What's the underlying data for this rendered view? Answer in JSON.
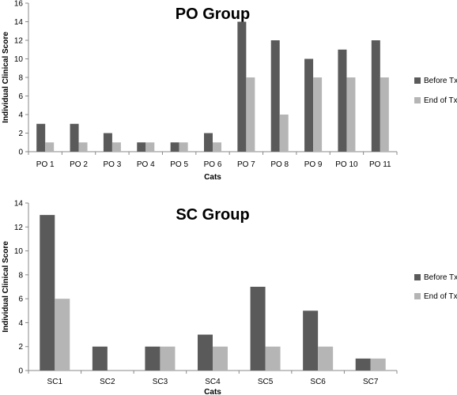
{
  "colors": {
    "before": "#5a5a5a",
    "end": "#b5b5b5"
  },
  "chart_data": [
    {
      "id": "po",
      "type": "bar",
      "title": "PO Group",
      "xlabel": "Cats",
      "ylabel": "Individual Clinical Score",
      "ylim": [
        0,
        16
      ],
      "yticks": [
        0,
        2,
        4,
        6,
        8,
        10,
        12,
        14,
        16
      ],
      "grid": false,
      "legend_position": "right",
      "categories": [
        "PO 1",
        "PO 2",
        "PO 3",
        "PO 4",
        "PO 5",
        "PO 6",
        "PO 7",
        "PO 8",
        "PO 9",
        "PO 10",
        "PO 11"
      ],
      "series": [
        {
          "name": "Before Tx",
          "values": [
            3,
            3,
            2,
            1,
            1,
            2,
            14,
            12,
            10,
            11,
            12
          ]
        },
        {
          "name": "End of Tx",
          "values": [
            1,
            1,
            1,
            1,
            1,
            1,
            8,
            4,
            8,
            8,
            8
          ]
        }
      ]
    },
    {
      "id": "sc",
      "type": "bar",
      "title": "SC Group",
      "xlabel": "Cats",
      "ylabel": "Individual Clinical Score",
      "ylim": [
        0,
        14
      ],
      "yticks": [
        0,
        2,
        4,
        6,
        8,
        10,
        12,
        14
      ],
      "grid": false,
      "legend_position": "right",
      "categories": [
        "SC1",
        "SC2",
        "SC3",
        "SC4",
        "SC5",
        "SC6",
        "SC7"
      ],
      "series": [
        {
          "name": "Before Tx",
          "values": [
            13,
            2,
            2,
            3,
            7,
            5,
            1
          ]
        },
        {
          "name": "End of Tx",
          "values": [
            6,
            0,
            2,
            2,
            2,
            2,
            1
          ]
        }
      ]
    }
  ]
}
